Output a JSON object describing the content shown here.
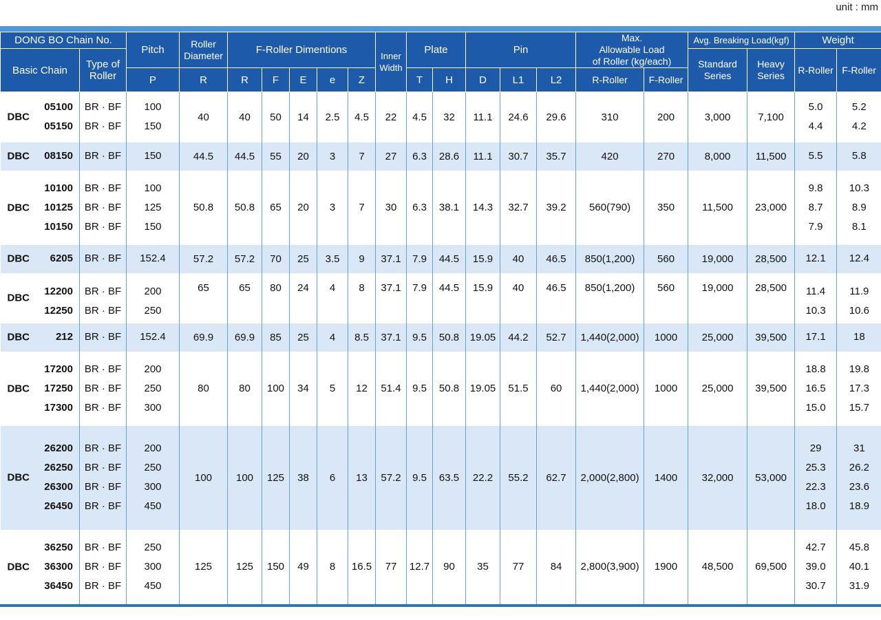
{
  "meta": {
    "unit_label": "unit : mm"
  },
  "table": {
    "header": {
      "dongbo": "DONG BO Chain No.",
      "basic_chain": "Basic Chain",
      "type_of_roller": "Type of Roller",
      "pitch": "Pitch",
      "pitch_sub": "P",
      "roller_diameter": "Roller\nDiameter",
      "roller_diameter_sub": "R",
      "f_roller_dim": "F-Roller Dimentions",
      "f_roller_subs": [
        "R",
        "F",
        "E",
        "e",
        "Z"
      ],
      "inner_width": "Inner\nWidth",
      "plate": "Plate",
      "plate_subs": [
        "T",
        "H"
      ],
      "pin": "Pin",
      "pin_subs": [
        "D",
        "L1",
        "L2"
      ],
      "max_load": "Max.\nAllowable Load\nof Roller (kg/each)",
      "max_load_subs": [
        "R-Roller",
        "F-Roller"
      ],
      "breaking_load": "Avg. Breaking Load(kgf)",
      "breaking_subs": [
        "Standard\nSeries",
        "Heavy\nSeries"
      ],
      "weight": "Weight",
      "weight_subs": [
        "R-Roller",
        "F-Roller"
      ]
    },
    "rows": [
      {
        "prefix": "DBC",
        "chains": [
          "05100",
          "05150"
        ],
        "types": [
          "BR · BF",
          "BR · BF"
        ],
        "pitches": [
          "100",
          "150"
        ],
        "roller_d": "40",
        "fr_r": "40",
        "fr_f": "50",
        "fr_e": "14",
        "fr_e2": "2.5",
        "fr_z": "4.5",
        "iw": "22",
        "t": "4.5",
        "h": "32",
        "d": "11.1",
        "l1": "24.6",
        "l2": "29.6",
        "load_r": "310",
        "load_f": "200",
        "std": "3,000",
        "heavy": "7,100",
        "w_r": [
          "5.0",
          "4.4"
        ],
        "w_f": [
          "5.2",
          "4.2"
        ],
        "shaded": false,
        "valign": "middle"
      },
      {
        "prefix": "DBC",
        "chains": [
          "08150"
        ],
        "types": [
          "BR · BF"
        ],
        "pitches": [
          "150"
        ],
        "roller_d": "44.5",
        "fr_r": "44.5",
        "fr_f": "55",
        "fr_e": "20",
        "fr_e2": "3",
        "fr_z": "7",
        "iw": "27",
        "t": "6.3",
        "h": "28.6",
        "d": "11.1",
        "l1": "30.7",
        "l2": "35.7",
        "load_r": "420",
        "load_f": "270",
        "std": "8,000",
        "heavy": "11,500",
        "w_r": [
          "5.5"
        ],
        "w_f": [
          "5.8"
        ],
        "shaded": true,
        "valign": "middle"
      },
      {
        "prefix": "DBC",
        "chains": [
          "10100",
          "10125",
          "10150"
        ],
        "types": [
          "BR · BF",
          "BR · BF",
          "BR · BF"
        ],
        "pitches": [
          "100",
          "125",
          "150"
        ],
        "roller_d": "50.8",
        "fr_r": "50.8",
        "fr_f": "65",
        "fr_e": "20",
        "fr_e2": "3",
        "fr_z": "7",
        "iw": "30",
        "t": "6.3",
        "h": "38.1",
        "d": "14.3",
        "l1": "32.7",
        "l2": "39.2",
        "load_r": "560(790)",
        "load_f": "350",
        "std": "11,500",
        "heavy": "23,000",
        "w_r": [
          "9.8",
          "8.7",
          "7.9"
        ],
        "w_f": [
          "10.3",
          "8.9",
          "8.1"
        ],
        "shaded": false,
        "valign": "middle"
      },
      {
        "prefix": "DBC",
        "chains": [
          "6205"
        ],
        "types": [
          "BR · BF"
        ],
        "pitches": [
          "152.4"
        ],
        "roller_d": "57.2",
        "fr_r": "57.2",
        "fr_f": "70",
        "fr_e": "25",
        "fr_e2": "3.5",
        "fr_z": "9",
        "iw": "37.1",
        "t": "7.9",
        "h": "44.5",
        "d": "15.9",
        "l1": "40",
        "l2": "46.5",
        "load_r": "850(1,200)",
        "load_f": "560",
        "std": "19,000",
        "heavy": "28,500",
        "w_r": [
          "12.1"
        ],
        "w_f": [
          "12.4"
        ],
        "shaded": true,
        "valign": "middle"
      },
      {
        "prefix": "DBC",
        "chains": [
          "12200",
          "12250"
        ],
        "types": [
          "BR · BF",
          "BR · BF"
        ],
        "pitches": [
          "200",
          "250"
        ],
        "roller_d": "65",
        "fr_r": "65",
        "fr_f": "80",
        "fr_e": "24",
        "fr_e2": "4",
        "fr_z": "8",
        "iw": "37.1",
        "t": "7.9",
        "h": "44.5",
        "d": "15.9",
        "l1": "40",
        "l2": "46.5",
        "load_r": "850(1,200)",
        "load_f": "560",
        "std": "19,000",
        "heavy": "28,500",
        "w_r": [
          "11.4",
          "10.3"
        ],
        "w_f": [
          "11.9",
          "10.6"
        ],
        "shaded": false,
        "valign": "top"
      },
      {
        "prefix": "DBC",
        "chains": [
          "212"
        ],
        "types": [
          "BR · BF"
        ],
        "pitches": [
          "152.4"
        ],
        "roller_d": "69.9",
        "fr_r": "69.9",
        "fr_f": "85",
        "fr_e": "25",
        "fr_e2": "4",
        "fr_z": "8.5",
        "iw": "37.1",
        "t": "9.5",
        "h": "50.8",
        "d": "19.05",
        "l1": "44.2",
        "l2": "52.7",
        "load_r": "1,440(2,000)",
        "load_f": "1000",
        "std": "25,000",
        "heavy": "39,500",
        "w_r": [
          "17.1"
        ],
        "w_f": [
          "18"
        ],
        "shaded": true,
        "valign": "middle"
      },
      {
        "prefix": "DBC",
        "chains": [
          "17200",
          "17250",
          "17300"
        ],
        "types": [
          "BR · BF",
          "BR · BF",
          "BR · BF"
        ],
        "pitches": [
          "200",
          "250",
          "300"
        ],
        "roller_d": "80",
        "fr_r": "80",
        "fr_f": "100",
        "fr_e": "34",
        "fr_e2": "5",
        "fr_z": "12",
        "iw": "51.4",
        "t": "9.5",
        "h": "50.8",
        "d": "19.05",
        "l1": "51.5",
        "l2": "60",
        "load_r": "1,440(2,000)",
        "load_f": "1000",
        "std": "25,000",
        "heavy": "39,500",
        "w_r": [
          "18.8",
          "16.5",
          "15.0"
        ],
        "w_f": [
          "19.8",
          "17.3",
          "15.7"
        ],
        "shaded": false,
        "valign": "middle"
      },
      {
        "prefix": "DBC",
        "chains": [
          "26200",
          "26250",
          "26300",
          "26450"
        ],
        "types": [
          "BR · BF",
          "BR · BF",
          "BR · BF",
          "BR · BF"
        ],
        "pitches": [
          "200",
          "250",
          "300",
          "450"
        ],
        "roller_d": "100",
        "fr_r": "100",
        "fr_f": "125",
        "fr_e": "38",
        "fr_e2": "6",
        "fr_z": "13",
        "iw": "57.2",
        "t": "9.5",
        "h": "63.5",
        "d": "22.2",
        "l1": "55.2",
        "l2": "62.7",
        "load_r": "2,000(2,800)",
        "load_f": "1400",
        "std": "32,000",
        "heavy": "53,000",
        "w_r": [
          "29",
          "25.3",
          "22.3",
          "18.0"
        ],
        "w_f": [
          "31",
          "26.2",
          "23.6",
          "18.9"
        ],
        "shaded": true,
        "valign": "middle"
      },
      {
        "prefix": "DBC",
        "chains": [
          "36250",
          "36300",
          "36450"
        ],
        "types": [
          "BR · BF",
          "BR · BF",
          "BR · BF"
        ],
        "pitches": [
          "250",
          "300",
          "450"
        ],
        "roller_d": "125",
        "fr_r": "125",
        "fr_f": "150",
        "fr_e": "49",
        "fr_e2": "8",
        "fr_z": "16.5",
        "iw": "77",
        "t": "12.7",
        "h": "90",
        "d": "35",
        "l1": "77",
        "l2": "84",
        "load_r": "2,800(3,900)",
        "load_f": "1900",
        "std": "48,500",
        "heavy": "69,500",
        "w_r": [
          "42.7",
          "39.0",
          "30.7"
        ],
        "w_f": [
          "45.8",
          "40.1",
          "31.9"
        ],
        "shaded": false,
        "valign": "middle"
      }
    ]
  }
}
